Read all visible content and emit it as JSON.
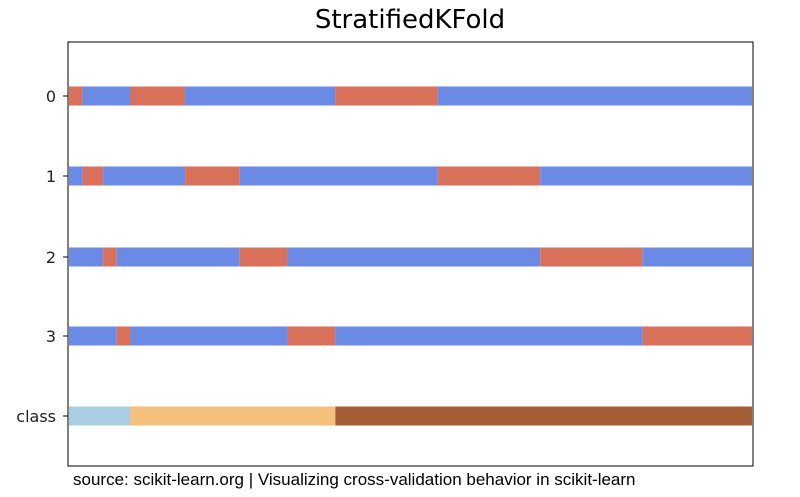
{
  "chart_data": {
    "type": "bar",
    "title": "StratifiedKFold",
    "xlabel": "",
    "ylabel": "",
    "categories": [
      "0",
      "1",
      "2",
      "3",
      "class"
    ],
    "xlim": [
      0,
      100
    ],
    "grid": false,
    "legend": "none",
    "rows": [
      {
        "label": "0",
        "segments": [
          {
            "start": 0,
            "end": 2,
            "kind": "test"
          },
          {
            "start": 2,
            "end": 9,
            "kind": "train"
          },
          {
            "start": 9,
            "end": 17,
            "kind": "test"
          },
          {
            "start": 17,
            "end": 39,
            "kind": "train"
          },
          {
            "start": 39,
            "end": 54,
            "kind": "test"
          },
          {
            "start": 54,
            "end": 100,
            "kind": "train"
          }
        ]
      },
      {
        "label": "1",
        "segments": [
          {
            "start": 0,
            "end": 2,
            "kind": "train"
          },
          {
            "start": 2,
            "end": 5,
            "kind": "test"
          },
          {
            "start": 5,
            "end": 17,
            "kind": "train"
          },
          {
            "start": 17,
            "end": 25,
            "kind": "test"
          },
          {
            "start": 25,
            "end": 54,
            "kind": "train"
          },
          {
            "start": 54,
            "end": 69,
            "kind": "test"
          },
          {
            "start": 69,
            "end": 100,
            "kind": "train"
          }
        ]
      },
      {
        "label": "2",
        "segments": [
          {
            "start": 0,
            "end": 5,
            "kind": "train"
          },
          {
            "start": 5,
            "end": 7,
            "kind": "test"
          },
          {
            "start": 7,
            "end": 25,
            "kind": "train"
          },
          {
            "start": 25,
            "end": 32,
            "kind": "test"
          },
          {
            "start": 32,
            "end": 69,
            "kind": "train"
          },
          {
            "start": 69,
            "end": 84,
            "kind": "test"
          },
          {
            "start": 84,
            "end": 100,
            "kind": "train"
          }
        ]
      },
      {
        "label": "3",
        "segments": [
          {
            "start": 0,
            "end": 7,
            "kind": "train"
          },
          {
            "start": 7,
            "end": 9,
            "kind": "test"
          },
          {
            "start": 9,
            "end": 32,
            "kind": "train"
          },
          {
            "start": 32,
            "end": 39,
            "kind": "test"
          },
          {
            "start": 39,
            "end": 84,
            "kind": "train"
          },
          {
            "start": 84,
            "end": 100,
            "kind": "test"
          }
        ]
      },
      {
        "label": "class",
        "segments": [
          {
            "start": 0,
            "end": 9,
            "kind": "class_0"
          },
          {
            "start": 9,
            "end": 39,
            "kind": "class_1"
          },
          {
            "start": 39,
            "end": 100,
            "kind": "class_2"
          }
        ]
      }
    ],
    "colors": {
      "train": "#6b8ae6",
      "test": "#d9715a",
      "class_0": "#a9cde3",
      "class_1": "#f4c07c",
      "class_2": "#a65e34"
    }
  },
  "caption": "source: scikit-learn.org | Visualizing cross-validation behavior in scikit-learn"
}
